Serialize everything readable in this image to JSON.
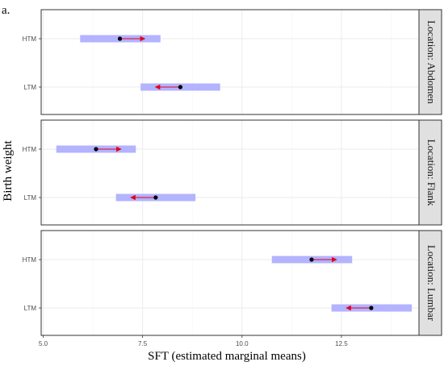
{
  "chart_data": {
    "type": "interval",
    "panel_letter": "a.",
    "xlabel": "SFT (estimated marginal means)",
    "ylabel": "Birth weight",
    "x_ticks": [
      "5.0",
      "7.5",
      "10.0",
      "12.5"
    ],
    "x_range": [
      4.95,
      14.45
    ],
    "categories": [
      "HTM",
      "LTM"
    ],
    "grid": true,
    "colors": {
      "ci": "#b3b3ff",
      "arrow": "#e3001b",
      "point": "#000000",
      "strip": "#e0e0e0"
    },
    "panels": [
      {
        "strip": "Location: Abdomen",
        "points": [
          {
            "group": "HTM",
            "emmean": 6.93,
            "ci_low": 5.93,
            "ci_high": 7.95,
            "arrow_to": 7.55
          },
          {
            "group": "LTM",
            "emmean": 8.45,
            "ci_low": 7.45,
            "ci_high": 9.45,
            "arrow_to": 7.83
          }
        ]
      },
      {
        "strip": "Location: Flank",
        "points": [
          {
            "group": "HTM",
            "emmean": 6.33,
            "ci_low": 5.33,
            "ci_high": 7.33,
            "arrow_to": 6.95
          },
          {
            "group": "LTM",
            "emmean": 7.83,
            "ci_low": 6.83,
            "ci_high": 8.83,
            "arrow_to": 7.21
          }
        ]
      },
      {
        "strip": "Location: Lumbar",
        "points": [
          {
            "group": "HTM",
            "emmean": 11.75,
            "ci_low": 10.75,
            "ci_high": 12.77,
            "arrow_to": 12.37
          },
          {
            "group": "LTM",
            "emmean": 13.25,
            "ci_low": 12.25,
            "ci_high": 14.27,
            "arrow_to": 12.63
          }
        ]
      }
    ]
  }
}
